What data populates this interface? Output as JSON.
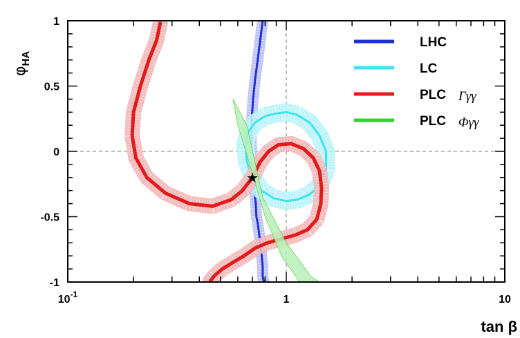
{
  "chart_data": {
    "type": "line",
    "xlabel": "tan β",
    "ylabel_main": "φ",
    "ylabel_sub": "HA",
    "x_scale": "log",
    "xlim": [
      0.1,
      10
    ],
    "ylim": [
      -1,
      1
    ],
    "x_ticks": [
      {
        "value": 0.1,
        "base": "10",
        "exp": "-1"
      },
      {
        "value": 1,
        "base": "1",
        "exp": ""
      },
      {
        "value": 10,
        "base": "10",
        "exp": ""
      }
    ],
    "y_ticks": [
      {
        "value": 1,
        "label": "1"
      },
      {
        "value": 0.5,
        "label": "0.5"
      },
      {
        "value": 0,
        "label": "0"
      },
      {
        "value": -0.5,
        "label": "-0.5"
      },
      {
        "value": -1,
        "label": "-1"
      }
    ],
    "reference_lines": {
      "x": 1,
      "y": 0
    },
    "marker": {
      "x": 0.7,
      "y": -0.2,
      "symbol": "★"
    },
    "legend": [
      {
        "label": "LHC",
        "sub": "",
        "color": "#1f2fd0"
      },
      {
        "label": "LC",
        "sub": "",
        "color": "#3fe3f0"
      },
      {
        "label": "PLC",
        "sub": "Γγγ",
        "color": "#e01b1b"
      },
      {
        "label": "PLC",
        "sub": "Φγγ",
        "color": "#33d033"
      }
    ],
    "series": [
      {
        "key": "lhc",
        "color": "#1f2fd0",
        "band_color": "#b8bdf4",
        "band_width": 3,
        "x": [
          0.78,
          0.76,
          0.74,
          0.72,
          0.705,
          0.695,
          0.69,
          0.695,
          0.705,
          0.715,
          0.72,
          0.725,
          0.73,
          0.74,
          0.75,
          0.76,
          0.77,
          0.775,
          0.78,
          0.78,
          0.78,
          0.785,
          0.79
        ],
        "y": [
          1.0,
          0.85,
          0.7,
          0.55,
          0.4,
          0.25,
          0.1,
          -0.05,
          -0.2,
          -0.3,
          -0.35,
          -0.4,
          -0.5,
          -0.55,
          -0.62,
          -0.7,
          -0.78,
          -0.83,
          -0.88,
          -0.92,
          -0.96,
          -0.98,
          -1.0
        ]
      },
      {
        "key": "lc",
        "color": "#3fe3f0",
        "band_color": "#b6f3f8",
        "band_width": 3,
        "x": [
          1.0,
          1.12,
          1.28,
          1.42,
          1.52,
          1.52,
          1.42,
          1.28,
          1.12,
          1.0,
          0.88,
          0.77,
          0.7,
          0.66,
          0.65,
          0.67,
          0.72,
          0.8,
          0.9,
          1.0
        ],
        "y": [
          0.3,
          0.28,
          0.22,
          0.12,
          0.0,
          -0.14,
          -0.26,
          -0.33,
          -0.37,
          -0.38,
          -0.36,
          -0.3,
          -0.2,
          -0.08,
          0.05,
          0.15,
          0.22,
          0.27,
          0.29,
          0.3
        ]
      },
      {
        "key": "plc_gamma",
        "color": "#e01b1b",
        "band_color": "#f2b4b4",
        "band_width": 5,
        "x": [
          0.265,
          0.255,
          0.235,
          0.215,
          0.2,
          0.197,
          0.205,
          0.23,
          0.28,
          0.36,
          0.46,
          0.56,
          0.63,
          0.7,
          0.76,
          0.83,
          0.92,
          1.05,
          1.2,
          1.33,
          1.42,
          1.45,
          1.44,
          1.38,
          1.25,
          1.1,
          0.95,
          0.82,
          0.72,
          0.64,
          0.57,
          0.51,
          0.47,
          0.45
        ],
        "y": [
          0.98,
          0.85,
          0.7,
          0.5,
          0.3,
          0.12,
          -0.05,
          -0.2,
          -0.32,
          -0.4,
          -0.42,
          -0.37,
          -0.3,
          -0.2,
          -0.08,
          0.0,
          0.05,
          0.06,
          0.02,
          -0.05,
          -0.15,
          -0.28,
          -0.4,
          -0.52,
          -0.6,
          -0.64,
          -0.67,
          -0.7,
          -0.74,
          -0.8,
          -0.85,
          -0.9,
          -0.95,
          -0.99
        ]
      },
      {
        "key": "plc_phi",
        "color": "#33d033",
        "band_color": "#b9efb6",
        "band_width": 0,
        "polygon_x": [
          0.57,
          0.66,
          0.78,
          1.0,
          1.3,
          1.42,
          1.15,
          0.95,
          0.8,
          0.68,
          0.6
        ],
        "polygon_y": [
          0.4,
          0.2,
          -0.35,
          -0.7,
          -0.96,
          -1.0,
          -1.0,
          -0.8,
          -0.5,
          -0.1,
          0.2
        ]
      }
    ]
  }
}
